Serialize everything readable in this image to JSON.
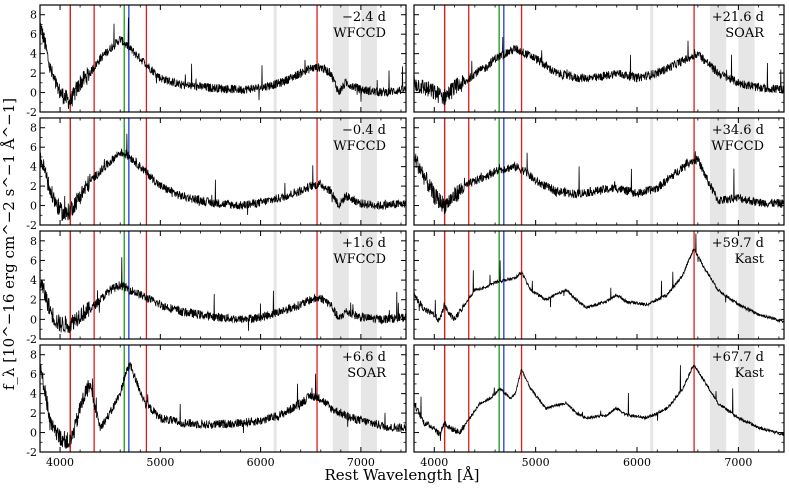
{
  "chart_data": {
    "type": "line",
    "xlabel": "Rest Wavelength [Å]",
    "ylabel": "f_λ [10^−16 erg cm^−2 s^−1 Å^−1]",
    "xlim": [
      3800,
      7450
    ],
    "ylim": [
      -2,
      9
    ],
    "x_ticks": [
      4000,
      5000,
      6000,
      7000
    ],
    "x_tick_labels": [
      "4000",
      "5000",
      "6000",
      "7000"
    ],
    "y_ticks": [
      -2,
      0,
      2,
      4,
      6,
      8
    ],
    "y_tick_labels": [
      "-2",
      "0",
      "2",
      "4",
      "6",
      "8"
    ],
    "line_colors": {
      "balmer": "#e31a1c",
      "green": "#1a9a1a",
      "blue": "#1f3fd0"
    },
    "balmer_lines": [
      4102,
      4340,
      4861,
      6563
    ],
    "green_lines": [
      4102,
      4640
    ],
    "blue_lines": [
      4686
    ],
    "telluric_bands": [
      [
        6130,
        6160
      ],
      [
        6720,
        6880
      ],
      [
        7000,
        7160
      ]
    ],
    "panels": [
      {
        "label1": "−2.4 d",
        "label2": "WFCCD",
        "column": "left",
        "spectrum": [
          [
            3800,
            7.0
          ],
          [
            3850,
            5.0
          ],
          [
            3900,
            2.5
          ],
          [
            3950,
            1.0
          ],
          [
            4000,
            0.0
          ],
          [
            4050,
            -0.5
          ],
          [
            4100,
            -1.0
          ],
          [
            4150,
            0.0
          ],
          [
            4200,
            1.0
          ],
          [
            4300,
            2.0
          ],
          [
            4400,
            3.5
          ],
          [
            4500,
            4.5
          ],
          [
            4600,
            5.5
          ],
          [
            4650,
            5.0
          ],
          [
            4700,
            4.5
          ],
          [
            4800,
            3.5
          ],
          [
            4900,
            2.5
          ],
          [
            5000,
            1.5
          ],
          [
            5200,
            0.8
          ],
          [
            5500,
            0.5
          ],
          [
            5800,
            0.3
          ],
          [
            6000,
            0.5
          ],
          [
            6200,
            1.0
          ],
          [
            6400,
            2.0
          ],
          [
            6500,
            2.5
          ],
          [
            6600,
            2.6
          ],
          [
            6700,
            2.0
          ],
          [
            6780,
            0.0
          ],
          [
            6850,
            1.0
          ],
          [
            7000,
            0.3
          ],
          [
            7200,
            0.0
          ],
          [
            7450,
            0.3
          ]
        ]
      },
      {
        "label1": "+21.6 d",
        "label2": "SOAR",
        "column": "right",
        "spectrum": [
          [
            3800,
            1.0
          ],
          [
            3900,
            0.5
          ],
          [
            4000,
            0.0
          ],
          [
            4100,
            -0.5
          ],
          [
            4200,
            0.5
          ],
          [
            4300,
            1.0
          ],
          [
            4400,
            2.0
          ],
          [
            4500,
            2.5
          ],
          [
            4600,
            3.5
          ],
          [
            4700,
            4.0
          ],
          [
            4800,
            4.5
          ],
          [
            4900,
            4.0
          ],
          [
            5000,
            3.5
          ],
          [
            5200,
            2.0
          ],
          [
            5400,
            1.5
          ],
          [
            5600,
            1.5
          ],
          [
            5800,
            2.0
          ],
          [
            6000,
            1.5
          ],
          [
            6200,
            2.0
          ],
          [
            6400,
            3.0
          ],
          [
            6500,
            3.5
          ],
          [
            6600,
            4.0
          ],
          [
            6700,
            3.0
          ],
          [
            6800,
            2.0
          ],
          [
            7000,
            1.0
          ],
          [
            7200,
            0.5
          ],
          [
            7450,
            0.3
          ]
        ]
      },
      {
        "label1": "−0.4 d",
        "label2": "WFCCD",
        "column": "left",
        "spectrum": [
          [
            3800,
            5.0
          ],
          [
            3850,
            3.5
          ],
          [
            3900,
            1.5
          ],
          [
            3950,
            0.5
          ],
          [
            4000,
            -0.5
          ],
          [
            4050,
            -1.0
          ],
          [
            4100,
            -0.5
          ],
          [
            4200,
            1.0
          ],
          [
            4300,
            2.5
          ],
          [
            4400,
            3.5
          ],
          [
            4500,
            4.5
          ],
          [
            4600,
            5.5
          ],
          [
            4700,
            5.0
          ],
          [
            4800,
            4.0
          ],
          [
            4900,
            3.0
          ],
          [
            5000,
            2.0
          ],
          [
            5200,
            1.0
          ],
          [
            5500,
            0.3
          ],
          [
            5800,
            0.0
          ],
          [
            6000,
            0.3
          ],
          [
            6200,
            0.8
          ],
          [
            6400,
            1.5
          ],
          [
            6500,
            2.0
          ],
          [
            6600,
            2.2
          ],
          [
            6700,
            1.5
          ],
          [
            6780,
            0.0
          ],
          [
            6850,
            1.0
          ],
          [
            7000,
            0.2
          ],
          [
            7200,
            0.0
          ],
          [
            7450,
            0.2
          ]
        ]
      },
      {
        "label1": "+34.6 d",
        "label2": "WFCCD",
        "column": "right",
        "spectrum": [
          [
            3800,
            5.0
          ],
          [
            3900,
            3.0
          ],
          [
            4000,
            1.0
          ],
          [
            4100,
            0.0
          ],
          [
            4200,
            1.0
          ],
          [
            4300,
            2.0
          ],
          [
            4400,
            2.5
          ],
          [
            4500,
            3.0
          ],
          [
            4600,
            3.5
          ],
          [
            4700,
            3.8
          ],
          [
            4800,
            4.0
          ],
          [
            4900,
            3.5
          ],
          [
            5000,
            2.5
          ],
          [
            5200,
            1.5
          ],
          [
            5400,
            1.2
          ],
          [
            5600,
            1.5
          ],
          [
            5800,
            1.8
          ],
          [
            6000,
            1.2
          ],
          [
            6200,
            1.8
          ],
          [
            6400,
            3.5
          ],
          [
            6500,
            4.5
          ],
          [
            6600,
            4.7
          ],
          [
            6700,
            2.5
          ],
          [
            6800,
            0.5
          ],
          [
            7000,
            0.8
          ],
          [
            7200,
            0.3
          ],
          [
            7450,
            0.2
          ]
        ]
      },
      {
        "label1": "+1.6 d",
        "label2": "WFCCD",
        "column": "left",
        "spectrum": [
          [
            3800,
            4.0
          ],
          [
            3850,
            2.5
          ],
          [
            3900,
            1.0
          ],
          [
            3950,
            0.0
          ],
          [
            4000,
            -0.5
          ],
          [
            4100,
            -0.5
          ],
          [
            4200,
            0.5
          ],
          [
            4300,
            1.0
          ],
          [
            4400,
            2.0
          ],
          [
            4500,
            3.0
          ],
          [
            4600,
            3.5
          ],
          [
            4700,
            3.0
          ],
          [
            4800,
            2.5
          ],
          [
            4900,
            2.0
          ],
          [
            5000,
            1.5
          ],
          [
            5200,
            0.8
          ],
          [
            5500,
            0.3
          ],
          [
            5800,
            0.0
          ],
          [
            6000,
            0.2
          ],
          [
            6200,
            0.8
          ],
          [
            6400,
            1.5
          ],
          [
            6500,
            2.0
          ],
          [
            6600,
            2.2
          ],
          [
            6700,
            1.5
          ],
          [
            6780,
            0.0
          ],
          [
            6850,
            0.8
          ],
          [
            7000,
            0.2
          ],
          [
            7200,
            0.0
          ],
          [
            7450,
            0.2
          ]
        ]
      },
      {
        "label1": "+59.7 d",
        "label2": "Kast",
        "column": "right",
        "spectrum": [
          [
            3800,
            2.5
          ],
          [
            3900,
            1.0
          ],
          [
            4000,
            0.5
          ],
          [
            4050,
            -0.2
          ],
          [
            4100,
            1.5
          ],
          [
            4150,
            0.5
          ],
          [
            4200,
            0.0
          ],
          [
            4300,
            1.5
          ],
          [
            4400,
            3.0
          ],
          [
            4500,
            3.2
          ],
          [
            4600,
            3.8
          ],
          [
            4700,
            4.0
          ],
          [
            4800,
            4.2
          ],
          [
            4860,
            4.8
          ],
          [
            4950,
            3.0
          ],
          [
            5100,
            2.0
          ],
          [
            5200,
            2.5
          ],
          [
            5300,
            3.0
          ],
          [
            5400,
            2.0
          ],
          [
            5500,
            1.2
          ],
          [
            5700,
            1.8
          ],
          [
            5800,
            2.5
          ],
          [
            5900,
            1.8
          ],
          [
            6100,
            1.5
          ],
          [
            6300,
            2.5
          ],
          [
            6450,
            4.5
          ],
          [
            6560,
            7.2
          ],
          [
            6650,
            5.5
          ],
          [
            6800,
            3.0
          ],
          [
            7000,
            1.5
          ],
          [
            7200,
            0.5
          ],
          [
            7450,
            -0.2
          ]
        ]
      },
      {
        "label1": "+6.6 d",
        "label2": "SOAR",
        "column": "left",
        "spectrum": [
          [
            3800,
            6.5
          ],
          [
            3850,
            4.5
          ],
          [
            3900,
            1.0
          ],
          [
            3950,
            0.0
          ],
          [
            4000,
            -0.5
          ],
          [
            4100,
            -1.0
          ],
          [
            4150,
            0.5
          ],
          [
            4200,
            2.5
          ],
          [
            4250,
            4.0
          ],
          [
            4300,
            5.0
          ],
          [
            4350,
            2.5
          ],
          [
            4400,
            0.5
          ],
          [
            4500,
            2.0
          ],
          [
            4600,
            4.0
          ],
          [
            4650,
            6.0
          ],
          [
            4700,
            7.0
          ],
          [
            4750,
            5.5
          ],
          [
            4850,
            3.0
          ],
          [
            5000,
            1.5
          ],
          [
            5200,
            1.0
          ],
          [
            5500,
            0.8
          ],
          [
            5800,
            1.0
          ],
          [
            6000,
            1.2
          ],
          [
            6200,
            1.8
          ],
          [
            6400,
            3.0
          ],
          [
            6500,
            3.8
          ],
          [
            6600,
            3.5
          ],
          [
            6700,
            2.5
          ],
          [
            6900,
            1.5
          ],
          [
            7100,
            1.0
          ],
          [
            7300,
            0.5
          ],
          [
            7450,
            0.5
          ]
        ]
      },
      {
        "label1": "+67.7 d",
        "label2": "Kast",
        "column": "right",
        "spectrum": [
          [
            3800,
            3.0
          ],
          [
            3900,
            1.0
          ],
          [
            4000,
            0.5
          ],
          [
            4050,
            -0.2
          ],
          [
            4100,
            1.0
          ],
          [
            4150,
            0.5
          ],
          [
            4250,
            0.0
          ],
          [
            4350,
            1.5
          ],
          [
            4450,
            3.0
          ],
          [
            4550,
            3.5
          ],
          [
            4650,
            4.5
          ],
          [
            4750,
            3.5
          ],
          [
            4800,
            4.0
          ],
          [
            4860,
            6.5
          ],
          [
            4950,
            4.5
          ],
          [
            5100,
            2.5
          ],
          [
            5200,
            2.8
          ],
          [
            5300,
            3.0
          ],
          [
            5400,
            2.0
          ],
          [
            5500,
            1.5
          ],
          [
            5700,
            1.8
          ],
          [
            5800,
            2.5
          ],
          [
            5900,
            1.8
          ],
          [
            6100,
            1.5
          ],
          [
            6300,
            2.5
          ],
          [
            6450,
            4.5
          ],
          [
            6560,
            7.0
          ],
          [
            6650,
            5.5
          ],
          [
            6800,
            3.0
          ],
          [
            7000,
            1.5
          ],
          [
            7200,
            0.5
          ],
          [
            7450,
            -0.2
          ]
        ]
      }
    ]
  }
}
